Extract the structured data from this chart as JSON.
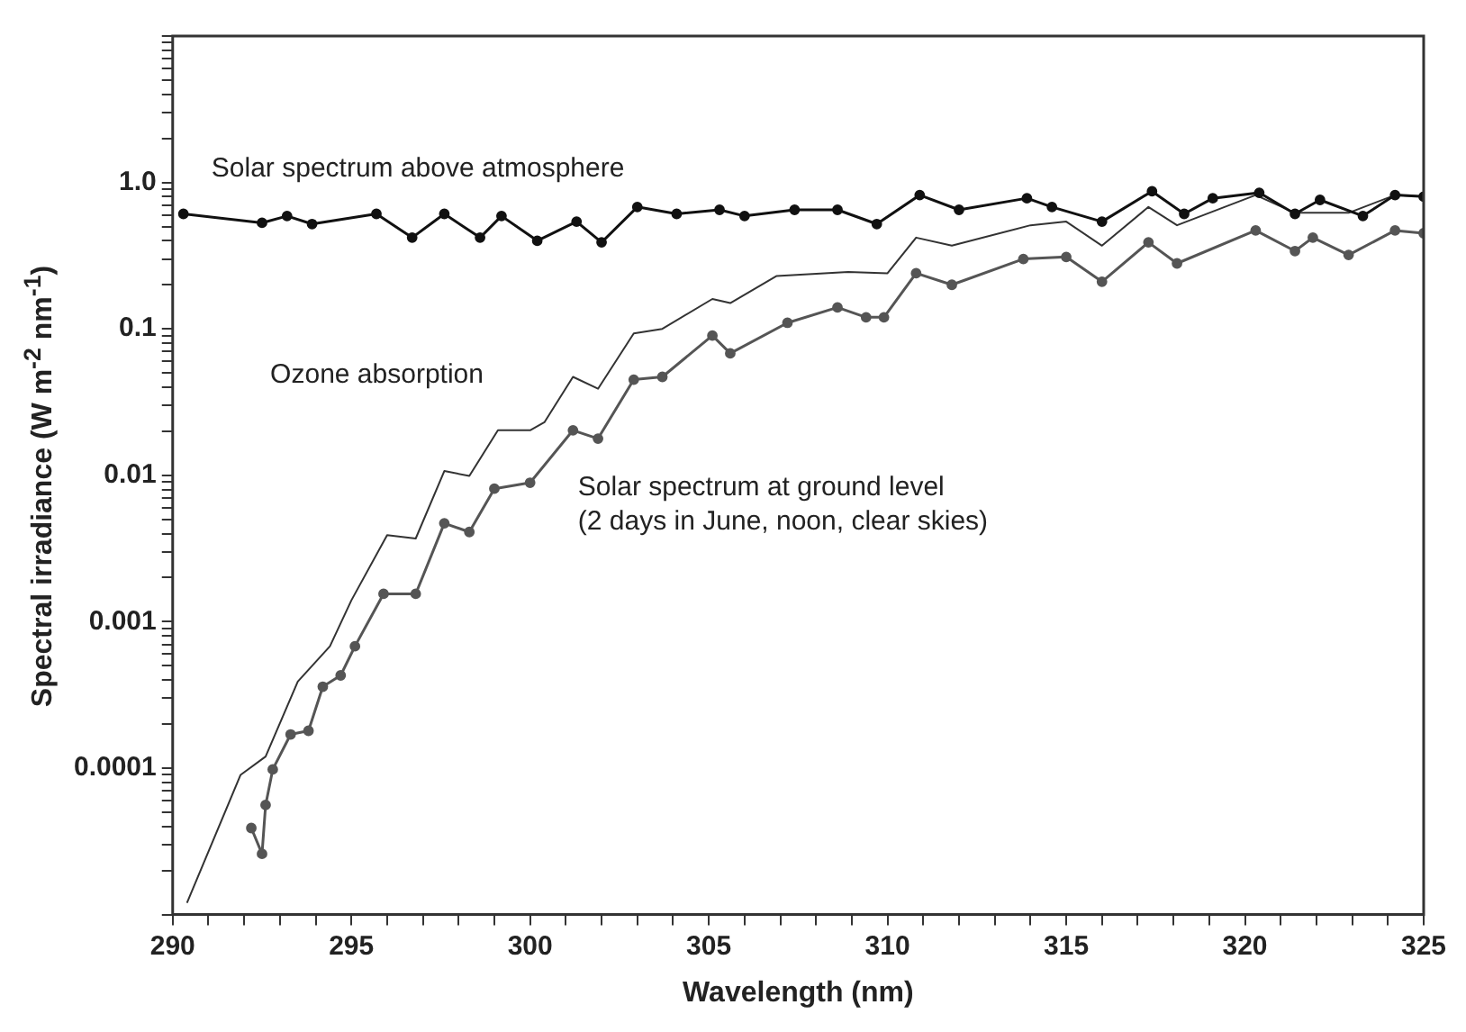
{
  "chart_data": {
    "type": "line",
    "xlabel": "Wavelength (nm)",
    "ylabel": "Spectral irradiance (W m$^{-2}$ nm$^{-1}$)",
    "log": true,
    "grid": false,
    "legend": false,
    "xlim": [
      290,
      325
    ],
    "xticks": [
      290,
      {
        "value": 291,
        "label": null
      },
      {
        "value": 292,
        "label": null
      },
      {
        "value": 293,
        "label": null
      },
      {
        "value": 294,
        "label": null
      },
      295,
      {
        "value": 296,
        "label": null
      },
      {
        "value": 297,
        "label": null
      },
      {
        "value": 298,
        "label": null
      },
      {
        "value": 299,
        "label": null
      },
      300,
      {
        "value": 301,
        "label": null
      },
      {
        "value": 302,
        "label": null
      },
      {
        "value": 303,
        "label": null
      },
      {
        "value": 304,
        "label": null
      },
      305,
      {
        "value": 306,
        "label": null
      },
      {
        "value": 307,
        "label": null
      },
      {
        "value": 308,
        "label": null
      },
      {
        "value": 309,
        "label": null
      },
      310,
      {
        "value": 311,
        "label": null
      },
      {
        "value": 312,
        "label": null
      },
      {
        "value": 313,
        "label": null
      },
      {
        "value": 314,
        "label": null
      },
      315,
      {
        "value": 316,
        "label": null
      },
      {
        "value": 317,
        "label": null
      },
      {
        "value": 318,
        "label": null
      },
      {
        "value": 319,
        "label": null
      },
      320,
      {
        "value": 321,
        "label": null
      },
      {
        "value": 322,
        "label": null
      },
      {
        "value": 323,
        "label": null
      },
      {
        "value": 324,
        "label": null
      },
      325
    ],
    "ylim": [
      1e-05,
      10
    ],
    "yticks": [
      {
        "value": 1e-05,
        "label": null
      },
      {
        "value": 2e-05,
        "label": null
      },
      {
        "value": 3e-05,
        "label": null
      },
      {
        "value": 4e-05,
        "label": null
      },
      {
        "value": 5e-05,
        "label": null
      },
      {
        "value": 6e-05,
        "label": null
      },
      {
        "value": 7e-05,
        "label": null
      },
      {
        "value": 8e-05,
        "label": null
      },
      {
        "value": 9e-05,
        "label": null
      },
      0.0001,
      {
        "value": 0.0002,
        "label": null
      },
      {
        "value": 0.0003,
        "label": null
      },
      {
        "value": 0.0004,
        "label": null
      },
      {
        "value": 0.0005,
        "label": null
      },
      {
        "value": 0.0006,
        "label": null
      },
      {
        "value": 0.0007,
        "label": null
      },
      {
        "value": 0.0008,
        "label": null
      },
      {
        "value": 0.0009,
        "label": null
      },
      0.001,
      {
        "value": 0.002,
        "label": null
      },
      {
        "value": 0.003,
        "label": null
      },
      {
        "value": 0.004,
        "label": null
      },
      {
        "value": 0.005,
        "label": null
      },
      {
        "value": 0.006,
        "label": null
      },
      {
        "value": 0.007,
        "label": null
      },
      {
        "value": 0.008,
        "label": null
      },
      {
        "value": 0.009,
        "label": null
      },
      0.01,
      {
        "value": 0.02,
        "label": null
      },
      {
        "value": 0.03,
        "label": null
      },
      {
        "value": 0.04,
        "label": null
      },
      {
        "value": 0.05,
        "label": null
      },
      {
        "value": 0.06,
        "label": null
      },
      {
        "value": 0.07,
        "label": null
      },
      {
        "value": 0.08,
        "label": null
      },
      {
        "value": 0.09,
        "label": null
      },
      0.1,
      {
        "value": 0.2,
        "label": null
      },
      {
        "value": 0.3,
        "label": null
      },
      {
        "value": 0.4,
        "label": null
      },
      {
        "value": 0.5,
        "label": null
      },
      {
        "value": 0.6,
        "label": null
      },
      {
        "value": 0.7,
        "label": null
      },
      {
        "value": 0.8,
        "label": null
      },
      {
        "value": 0.9,
        "label": null
      },
      {
        "value": 1,
        "label": "1.0"
      },
      {
        "value": 2,
        "label": null
      },
      {
        "value": 3,
        "label": null
      },
      {
        "value": 4,
        "label": null
      },
      {
        "value": 5,
        "label": null
      },
      {
        "value": 6,
        "label": null
      },
      {
        "value": 7,
        "label": null
      },
      {
        "value": 8,
        "label": null
      },
      {
        "value": 9,
        "label": null
      },
      {
        "value": 10,
        "label": null
      }
    ],
    "series": [
      {
        "color": "#111111",
        "marker": "circle",
        "x": [
          290.3,
          292.5,
          293.2,
          293.9,
          295.7,
          296.7,
          297.6,
          298.6,
          299.2,
          300.2,
          301.3,
          302.0,
          303.0,
          304.1,
          305.3,
          306.0,
          307.4,
          308.6,
          309.7,
          310.9,
          312.0,
          313.9,
          314.6,
          316.0,
          317.4,
          318.3,
          319.1,
          320.4,
          321.4,
          322.1,
          323.3,
          324.2,
          325
        ],
        "values": [
          0.61,
          0.53,
          0.59,
          0.52,
          0.61,
          0.42,
          0.61,
          0.42,
          0.59,
          0.4,
          0.54,
          0.39,
          0.68,
          0.61,
          0.65,
          0.59,
          0.65,
          0.65,
          0.52,
          0.82,
          0.65,
          0.78,
          0.68,
          0.54,
          0.87,
          0.61,
          0.78,
          0.85,
          0.61,
          0.76,
          0.59,
          0.82,
          0.8
        ]
      },
      {
        "color": "#333333",
        "marker": "none",
        "x": [
          290.4,
          291.9,
          292.6,
          293.5,
          294.4,
          295.0,
          296.0,
          296.8,
          297.6,
          298.3,
          299.1,
          300.0,
          300.4,
          301.2,
          301.9,
          302.9,
          303.7,
          305.1,
          305.6,
          306.9,
          308.9,
          310.0,
          310.8,
          311.8,
          314.0,
          315.0,
          316.0,
          317.3,
          318.1,
          320.3,
          321.4,
          322.9,
          324.2,
          325
        ],
        "values": [
          1.2e-05,
          9e-05,
          0.00012,
          0.00039,
          0.00068,
          0.0014,
          0.0039,
          0.0037,
          0.0107,
          0.0099,
          0.0203,
          0.0203,
          0.023,
          0.047,
          0.039,
          0.093,
          0.1,
          0.16,
          0.15,
          0.23,
          0.245,
          0.24,
          0.42,
          0.37,
          0.51,
          0.54,
          0.37,
          0.68,
          0.51,
          0.82,
          0.62,
          0.62,
          0.82,
          0.8
        ]
      },
      {
        "color": "#555555",
        "marker": "circle",
        "x": [
          292.2,
          292.5,
          292.6,
          292.8,
          293.3,
          293.8,
          294.2,
          294.7,
          295.1,
          295.9,
          296.8,
          297.6,
          298.3,
          299.0,
          300.0,
          301.2,
          301.9,
          302.9,
          303.7,
          305.1,
          305.6,
          307.2,
          308.6,
          309.4,
          309.9,
          310.8,
          311.8,
          313.8,
          315.0,
          316.0,
          317.3,
          318.1,
          320.3,
          321.4,
          321.9,
          322.9,
          324.2,
          325
        ],
        "values": [
          3.9e-05,
          2.6e-05,
          5.6e-05,
          9.8e-05,
          0.00017,
          0.00018,
          0.00036,
          0.00043,
          0.00068,
          0.00155,
          0.00155,
          0.0047,
          0.0041,
          0.0081,
          0.0089,
          0.0203,
          0.0178,
          0.045,
          0.047,
          0.09,
          0.068,
          0.11,
          0.14,
          0.12,
          0.12,
          0.24,
          0.2,
          0.3,
          0.31,
          0.21,
          0.39,
          0.28,
          0.47,
          0.34,
          0.42,
          0.32,
          0.47,
          0.45
        ]
      }
    ],
    "annotations": [
      "Solar spectrum above atmosphere",
      "Ozone absorption",
      "Solar spectrum at ground level\n(2 days in June, noon, clear skies)"
    ]
  }
}
